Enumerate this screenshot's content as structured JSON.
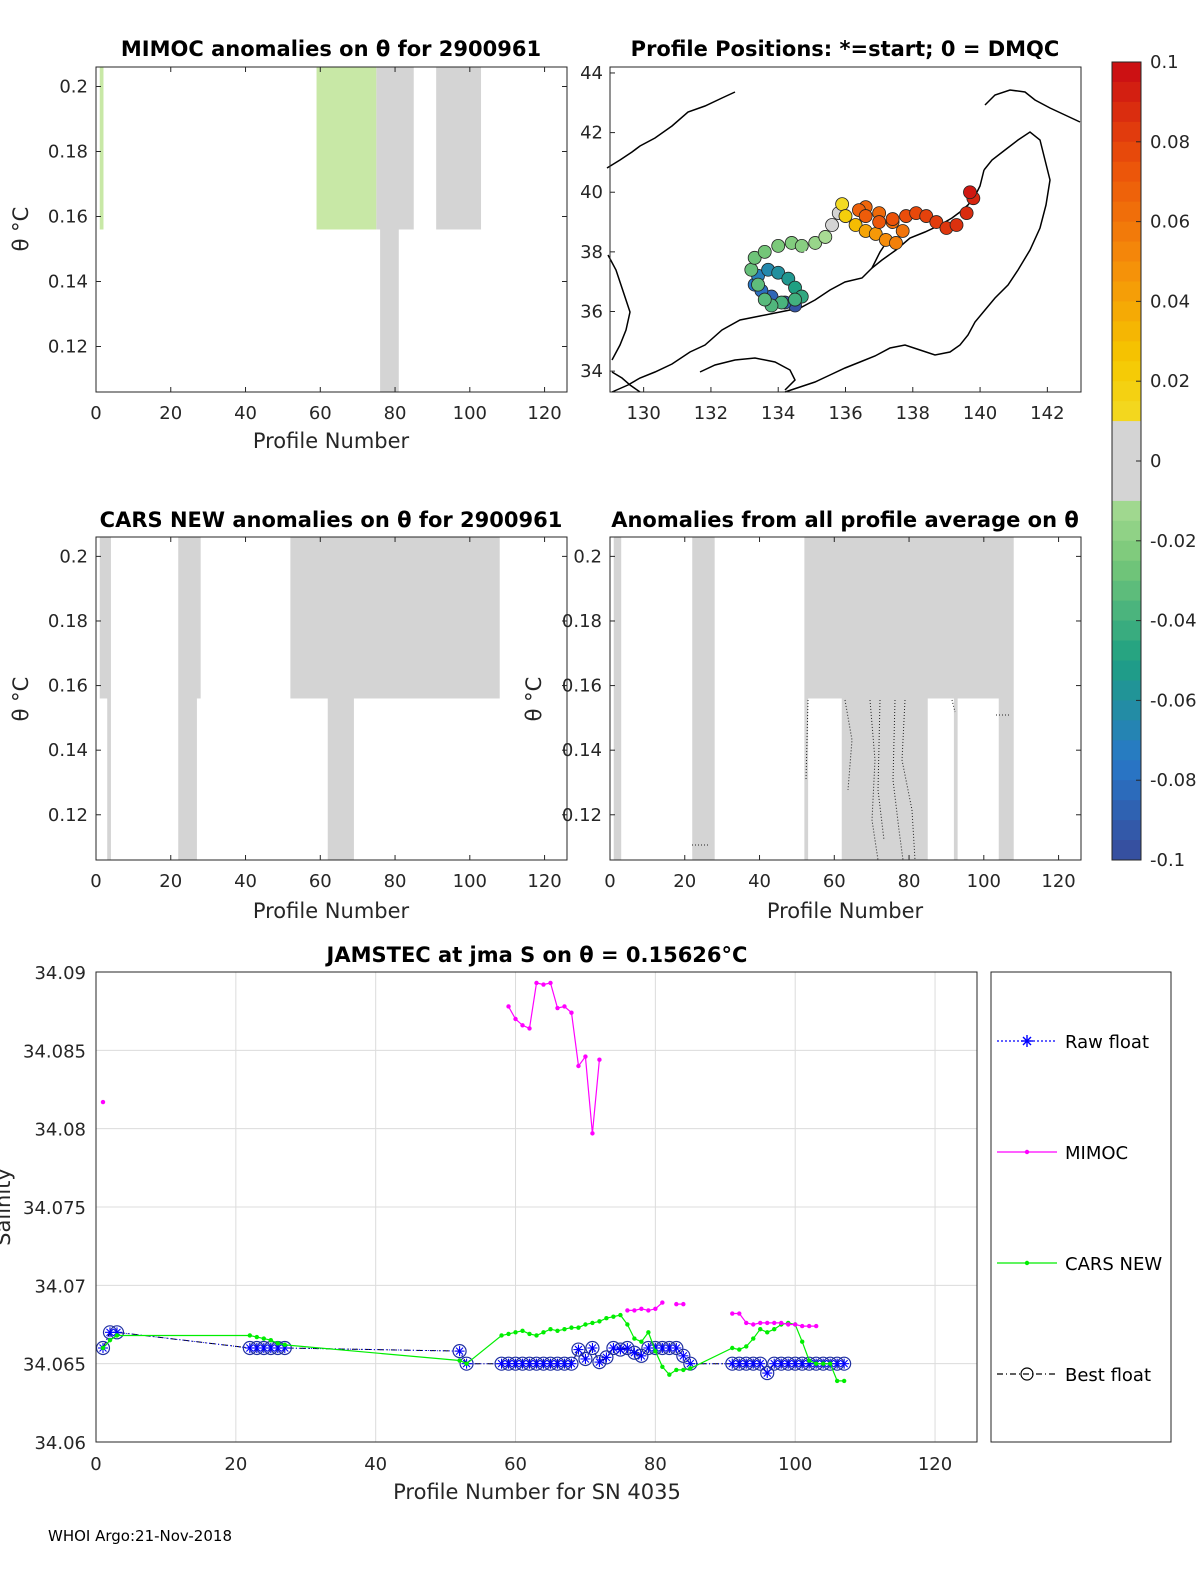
{
  "panels": {
    "mimoc": {
      "title": "MIMOC anomalies on θ  for 2900961",
      "xlabel": "Profile Number",
      "ylabel": "θ °C",
      "xticks": [
        "0",
        "20",
        "40",
        "60",
        "80",
        "100",
        "120"
      ],
      "yticks": [
        "0.2",
        "0.18",
        "0.16",
        "0.14",
        "0.12"
      ]
    },
    "positions": {
      "title": "Profile Positions: *=start; 0 = DMQC",
      "xticks": [
        "130",
        "132",
        "134",
        "136",
        "138",
        "140",
        "142"
      ],
      "yticks": [
        "44",
        "42",
        "40",
        "38",
        "36",
        "34"
      ]
    },
    "cars": {
      "title": "CARS NEW anomalies on θ for 2900961",
      "xlabel": "Profile Number",
      "ylabel": "θ °C",
      "xticks": [
        "0",
        "20",
        "40",
        "60",
        "80",
        "100",
        "120"
      ],
      "yticks": [
        "0.2",
        "0.18",
        "0.16",
        "0.14",
        "0.12"
      ]
    },
    "avg": {
      "title": "Anomalies from all profile average on θ",
      "xlabel": "Profile Number",
      "ylabel": "θ °C",
      "xticks": [
        "0",
        "20",
        "40",
        "60",
        "80",
        "100",
        "120"
      ],
      "yticks": [
        "0.2",
        "0.18",
        "0.16",
        "0.14",
        "0.12"
      ]
    },
    "colorbar": {
      "ticks": [
        "0.1",
        "0.08",
        "0.06",
        "0.04",
        "0.02",
        "0",
        "-0.02",
        "-0.04",
        "-0.06",
        "-0.08",
        "-0.1"
      ]
    },
    "salinity": {
      "title": "JAMSTEC at jma S on θ = 0.15626°C",
      "xlabel": "Profile Number for SN 4035",
      "ylabel": "Salinity",
      "xticks": [
        "0",
        "20",
        "40",
        "60",
        "80",
        "100",
        "120"
      ],
      "yticks": [
        "34.09",
        "34.085",
        "34.08",
        "34.075",
        "34.07",
        "34.065",
        "34.06"
      ]
    }
  },
  "footer": "WHOI Argo:21-Nov-2018",
  "chart_data": [
    {
      "type": "heatmap",
      "id": "mimoc",
      "title": "MIMOC anomalies on θ  for 2900961",
      "xlabel": "Profile Number",
      "ylabel": "θ °C",
      "xlim": [
        0,
        126
      ],
      "ylim": [
        0.106,
        0.206
      ],
      "cells": [
        {
          "x0": 1,
          "x1": 2,
          "y0": 0.156,
          "y1": 0.206,
          "v": -0.018
        },
        {
          "x0": 59,
          "x1": 75,
          "y0": 0.156,
          "y1": 0.206,
          "v": -0.018
        },
        {
          "x0": 75,
          "x1": 85,
          "y0": 0.156,
          "y1": 0.206,
          "v": 0.0
        },
        {
          "x0": 76,
          "x1": 81,
          "y0": 0.106,
          "y1": 0.156,
          "v": 0.0
        },
        {
          "x0": 91,
          "x1": 103,
          "y0": 0.156,
          "y1": 0.206,
          "v": 0.0
        }
      ]
    },
    {
      "type": "scatter",
      "id": "positions",
      "title": "Profile Positions: *=start; 0 = DMQC",
      "xlim": [
        129,
        143
      ],
      "ylim": [
        33.3,
        44.2
      ],
      "start": [
        134.8,
        37.8
      ],
      "lon": [
        134.5,
        134.2,
        133.8,
        133.5,
        133.3,
        133.4,
        133.7,
        134.0,
        134.3,
        134.5,
        134.7,
        134.5,
        134.1,
        133.8,
        133.6,
        133.4,
        133.2,
        133.3,
        133.6,
        134.0,
        134.4,
        134.7,
        135.1,
        135.4,
        135.6,
        135.8,
        135.9,
        136.0,
        136.3,
        136.6,
        136.9,
        137.2,
        137.5,
        137.7,
        137.4,
        137.0,
        136.6,
        136.4,
        136.6,
        137.0,
        137.4,
        137.8,
        138.1,
        138.4,
        138.7,
        139.0,
        139.3,
        139.6,
        139.8,
        139.7
      ],
      "lat": [
        36.2,
        36.3,
        36.5,
        36.7,
        36.9,
        37.2,
        37.4,
        37.3,
        37.1,
        36.8,
        36.5,
        36.4,
        36.3,
        36.2,
        36.4,
        36.9,
        37.4,
        37.8,
        38.0,
        38.2,
        38.3,
        38.2,
        38.3,
        38.5,
        38.9,
        39.3,
        39.6,
        39.2,
        38.9,
        38.7,
        38.6,
        38.4,
        38.3,
        38.7,
        39.0,
        39.3,
        39.5,
        39.4,
        39.2,
        39.0,
        39.1,
        39.2,
        39.3,
        39.2,
        39.0,
        38.8,
        38.9,
        39.3,
        39.8,
        40.0
      ],
      "anomaly": [
        -0.095,
        -0.09,
        -0.085,
        -0.08,
        -0.075,
        -0.07,
        -0.065,
        -0.06,
        -0.055,
        -0.05,
        -0.045,
        -0.04,
        -0.038,
        -0.036,
        -0.034,
        -0.032,
        -0.03,
        -0.028,
        -0.026,
        -0.024,
        -0.022,
        -0.02,
        -0.015,
        -0.01,
        -0.005,
        0.0,
        0.01,
        0.02,
        0.03,
        0.04,
        0.045,
        0.05,
        0.055,
        0.06,
        0.062,
        0.064,
        0.066,
        0.068,
        0.07,
        0.072,
        0.074,
        0.076,
        0.078,
        0.08,
        0.082,
        0.084,
        0.086,
        0.088,
        0.09,
        0.095
      ]
    },
    {
      "type": "heatmap",
      "id": "cars",
      "title": "CARS NEW anomalies on θ for 2900961",
      "xlabel": "Profile Number",
      "ylabel": "θ °C",
      "xlim": [
        0,
        126
      ],
      "ylim": [
        0.106,
        0.206
      ],
      "cells": [
        {
          "x0": 1,
          "x1": 4,
          "y0": 0.156,
          "y1": 0.206,
          "v": 0.0
        },
        {
          "x0": 3,
          "x1": 4,
          "y0": 0.106,
          "y1": 0.156,
          "v": 0.0
        },
        {
          "x0": 22,
          "x1": 28,
          "y0": 0.156,
          "y1": 0.206,
          "v": 0.0
        },
        {
          "x0": 22,
          "x1": 27,
          "y0": 0.106,
          "y1": 0.156,
          "v": 0.0
        },
        {
          "x0": 52,
          "x1": 108,
          "y0": 0.156,
          "y1": 0.206,
          "v": 0.0
        },
        {
          "x0": 62,
          "x1": 69,
          "y0": 0.106,
          "y1": 0.156,
          "v": 0.0
        }
      ]
    },
    {
      "type": "heatmap",
      "id": "avg",
      "title": "Anomalies from all profile average on θ",
      "xlabel": "Profile Number",
      "ylabel": "θ °C",
      "xlim": [
        0,
        126
      ],
      "ylim": [
        0.106,
        0.206
      ],
      "cells": [
        {
          "x0": 1,
          "x1": 3,
          "y0": 0.106,
          "y1": 0.206,
          "v": 0.0
        },
        {
          "x0": 22,
          "x1": 28,
          "y0": 0.106,
          "y1": 0.206,
          "v": 0.0
        },
        {
          "x0": 52,
          "x1": 108,
          "y0": 0.156,
          "y1": 0.206,
          "v": 0.0
        },
        {
          "x0": 52,
          "x1": 53,
          "y0": 0.106,
          "y1": 0.156,
          "v": 0.0
        },
        {
          "x0": 62,
          "x1": 85,
          "y0": 0.106,
          "y1": 0.156,
          "v": 0.0
        },
        {
          "x0": 92,
          "x1": 93,
          "y0": 0.106,
          "y1": 0.156,
          "v": 0.0
        },
        {
          "x0": 104,
          "x1": 108,
          "y0": 0.106,
          "y1": 0.156,
          "v": 0.0
        }
      ]
    },
    {
      "type": "line",
      "id": "salinity",
      "title": "JAMSTEC at jma S on θ = 0.15626°C",
      "xlabel": "Profile Number for SN 4035",
      "ylabel": "Salinity",
      "xlim": [
        0,
        126
      ],
      "ylim": [
        34.06,
        34.09
      ],
      "grid": true,
      "legend": [
        "Raw float",
        "MIMOC",
        "CARS NEW",
        "Best float"
      ],
      "series": [
        {
          "name": "MIMOC",
          "segments": [
            {
              "x": [
                1
              ],
              "y": [
                34.0817
              ]
            },
            {
              "x": [
                59,
                60,
                61,
                62,
                63,
                64,
                65,
                66,
                67,
                68,
                69,
                70,
                71,
                72
              ],
              "y": [
                34.0878,
                34.087,
                34.0866,
                34.0864,
                34.0893,
                34.0892,
                34.0893,
                34.0877,
                34.0878,
                34.0874,
                34.084,
                34.0846,
                34.0797,
                34.0844
              ]
            },
            {
              "x": [
                76,
                77,
                78,
                79,
                80,
                81
              ],
              "y": [
                34.0684,
                34.0684,
                34.0685,
                34.0684,
                34.0685,
                34.0689
              ]
            },
            {
              "x": [
                83,
                84
              ],
              "y": [
                34.0688,
                34.0688
              ]
            },
            {
              "x": [
                91,
                92,
                93,
                94,
                95,
                96,
                97,
                98,
                99,
                100,
                101,
                102,
                103
              ],
              "y": [
                34.0682,
                34.0682,
                34.0676,
                34.0675,
                34.0676,
                34.0676,
                34.0676,
                34.0676,
                34.0675,
                34.0675,
                34.0674,
                34.0674,
                34.0674
              ]
            }
          ]
        },
        {
          "name": "CARS NEW",
          "x": [
            1,
            2,
            3,
            22,
            23,
            24,
            25,
            26,
            27,
            52,
            53,
            58,
            59,
            60,
            61,
            62,
            63,
            64,
            65,
            66,
            67,
            68,
            69,
            70,
            71,
            72,
            73,
            74,
            75,
            76,
            77,
            78,
            79,
            80,
            81,
            82,
            83,
            84,
            85,
            91,
            92,
            93,
            94,
            95,
            96,
            97,
            98,
            99,
            100,
            101,
            102,
            103,
            104,
            105,
            106,
            107
          ],
          "y": [
            34.066,
            34.0665,
            34.0668,
            34.0668,
            34.0667,
            34.0666,
            34.0665,
            34.0663,
            34.0662,
            34.0652,
            34.065,
            34.0668,
            34.0669,
            34.067,
            34.0671,
            34.0669,
            34.0668,
            34.067,
            34.0672,
            34.0671,
            34.0672,
            34.0673,
            34.0673,
            34.0675,
            34.0676,
            34.0677,
            34.0679,
            34.068,
            34.0681,
            34.0675,
            34.0666,
            34.0664,
            34.067,
            34.0658,
            34.0648,
            34.0643,
            34.0646,
            34.0646,
            34.0647,
            34.066,
            34.0659,
            34.0661,
            34.0666,
            34.0672,
            34.067,
            34.0672,
            34.0675,
            34.0676,
            34.0675,
            34.0664,
            34.0652,
            34.065,
            34.065,
            34.065,
            34.0639,
            34.0639
          ]
        },
        {
          "name": "Raw float",
          "x": [
            1,
            2,
            3,
            22,
            23,
            24,
            25,
            26,
            27,
            52,
            53,
            58,
            59,
            60,
            61,
            62,
            63,
            64,
            65,
            66,
            67,
            68,
            69,
            70,
            71,
            72,
            73,
            74,
            75,
            76,
            77,
            78,
            79,
            80,
            81,
            82,
            83,
            84,
            85,
            91,
            92,
            93,
            94,
            95,
            96,
            97,
            98,
            99,
            100,
            101,
            102,
            103,
            104,
            105,
            106,
            107
          ],
          "y": [
            34.066,
            34.067,
            34.067,
            34.066,
            34.066,
            34.066,
            34.066,
            34.066,
            34.066,
            34.0658,
            34.065,
            34.065,
            34.065,
            34.065,
            34.065,
            34.065,
            34.065,
            34.065,
            34.065,
            34.065,
            34.065,
            34.065,
            34.0659,
            34.0653,
            34.066,
            34.0651,
            34.0654,
            34.066,
            34.0659,
            34.066,
            34.0657,
            34.0655,
            34.066,
            34.066,
            34.066,
            34.066,
            34.066,
            34.0655,
            34.065,
            34.065,
            34.065,
            34.065,
            34.065,
            34.065,
            34.0644,
            34.065,
            34.065,
            34.065,
            34.065,
            34.065,
            34.065,
            34.065,
            34.065,
            34.065,
            34.065,
            34.065
          ]
        },
        {
          "name": "Best float",
          "x": [
            1,
            2,
            3,
            22,
            23,
            24,
            25,
            26,
            27,
            52,
            53,
            58,
            59,
            60,
            61,
            62,
            63,
            64,
            65,
            66,
            67,
            68,
            69,
            70,
            71,
            72,
            73,
            74,
            75,
            76,
            77,
            78,
            79,
            80,
            81,
            82,
            83,
            84,
            85,
            91,
            92,
            93,
            94,
            95,
            96,
            97,
            98,
            99,
            100,
            101,
            102,
            103,
            104,
            105,
            106,
            107
          ],
          "y": [
            34.066,
            34.067,
            34.067,
            34.066,
            34.066,
            34.066,
            34.066,
            34.066,
            34.066,
            34.0658,
            34.065,
            34.065,
            34.065,
            34.065,
            34.065,
            34.065,
            34.065,
            34.065,
            34.065,
            34.065,
            34.065,
            34.065,
            34.0659,
            34.0653,
            34.066,
            34.0651,
            34.0654,
            34.066,
            34.0659,
            34.066,
            34.0657,
            34.0655,
            34.066,
            34.066,
            34.066,
            34.066,
            34.066,
            34.0655,
            34.065,
            34.065,
            34.065,
            34.065,
            34.065,
            34.065,
            34.0644,
            34.065,
            34.065,
            34.065,
            34.065,
            34.065,
            34.065,
            34.065,
            34.065,
            34.065,
            34.065,
            34.065
          ]
        }
      ]
    }
  ],
  "colors": {
    "mimoc": "#ff00ff",
    "cars": "#00ee00",
    "raw": "#0000ff",
    "best": "#000000",
    "best_marker": "#1f2fa0",
    "gray_cell": "#d4d4d4",
    "green_cell": "#c8e8a6"
  }
}
